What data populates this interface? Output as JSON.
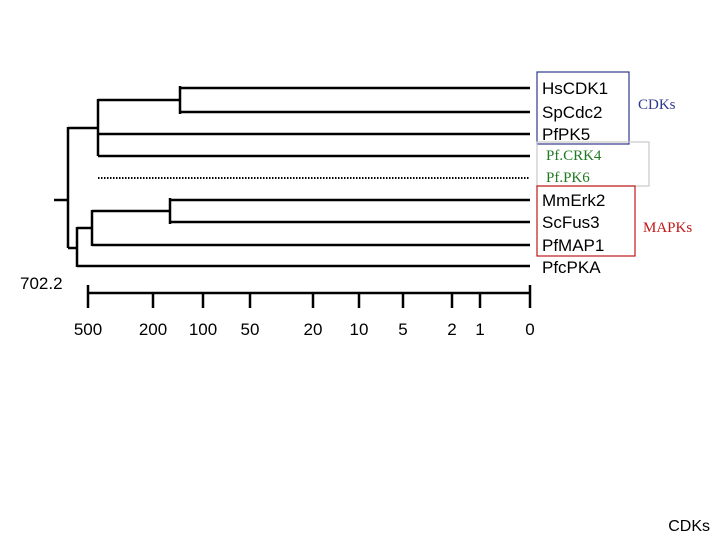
{
  "leaves": [
    "HsCDK1",
    "SpCdc2",
    "PfPK5",
    "PfCRK4",
    "PfPK6",
    "MmErk2",
    "ScFus3",
    "PfMAP1",
    "PfcPKA"
  ],
  "groups": {
    "cdks": {
      "label": "CDKs",
      "color": "#2e3a8c"
    },
    "pf_group": {
      "labels": [
        "Pf.CRK4",
        "Pf.PK6"
      ],
      "color": "#1e7a1e"
    },
    "mapks": {
      "label": "MAPKs",
      "color": "#c01818"
    }
  },
  "scale_label": "702.2",
  "axis_ticks": [
    "500",
    "200",
    "100",
    "50",
    "20",
    "10",
    "5",
    "2",
    "1",
    "0"
  ],
  "footer": "CDKs"
}
